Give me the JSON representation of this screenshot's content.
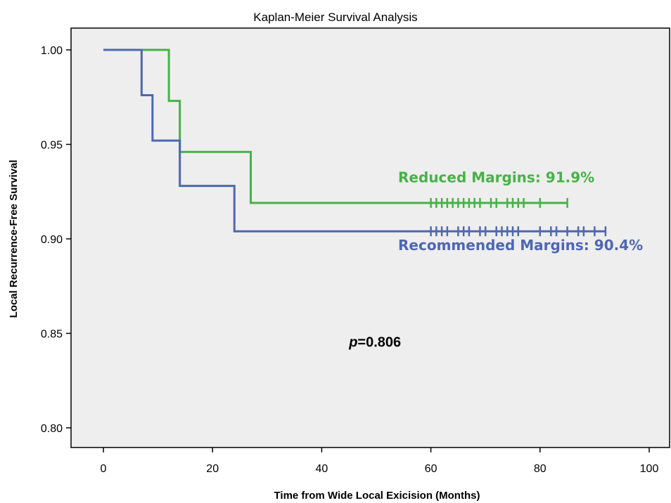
{
  "chart_data": {
    "type": "line",
    "subtype": "kaplan-meier step",
    "title": "Kaplan-Meier Survival Analysis",
    "xlabel": "Time from Wide Local Exicision (Months)",
    "ylabel": "Local Recurrence-Free Survival",
    "xlim": [
      0,
      100
    ],
    "ylim": [
      0.8,
      1.0
    ],
    "xticks": [
      0,
      20,
      40,
      60,
      80,
      100
    ],
    "yticks": [
      0.8,
      0.85,
      0.9,
      0.95,
      1.0
    ],
    "ytick_labels": [
      "0.80",
      "0.85",
      "0.90",
      "0.95",
      "1.00"
    ],
    "grid": false,
    "background": "#eeeeee",
    "annotation": {
      "p_label": "p",
      "p_value": "=0.806",
      "x": 45,
      "y": 0.843
    },
    "series": [
      {
        "label": "Reduced Margins: 91.9%",
        "color": "#46b248",
        "steps": [
          [
            0,
            1.0
          ],
          [
            12,
            0.973
          ],
          [
            14,
            0.946
          ],
          [
            27,
            0.919
          ]
        ],
        "end": 85,
        "censored": [
          60,
          61,
          62,
          63,
          64,
          65,
          66,
          67,
          68,
          69,
          71,
          72,
          74,
          75,
          76,
          77,
          80,
          85
        ],
        "label_pos": {
          "x": 54,
          "y": 0.93
        }
      },
      {
        "label": "Recommended Margins: 90.4%",
        "color": "#4e67b2",
        "steps": [
          [
            0,
            1.0
          ],
          [
            7,
            0.976
          ],
          [
            9,
            0.952
          ],
          [
            14,
            0.928
          ],
          [
            24,
            0.904
          ]
        ],
        "end": 92,
        "censored": [
          60,
          61,
          62,
          63,
          65,
          66,
          67,
          69,
          70,
          72,
          73,
          74,
          75,
          76,
          80,
          82,
          83,
          85,
          87,
          88,
          90,
          92
        ],
        "label_pos": {
          "x": 54,
          "y": 0.894
        }
      }
    ]
  }
}
